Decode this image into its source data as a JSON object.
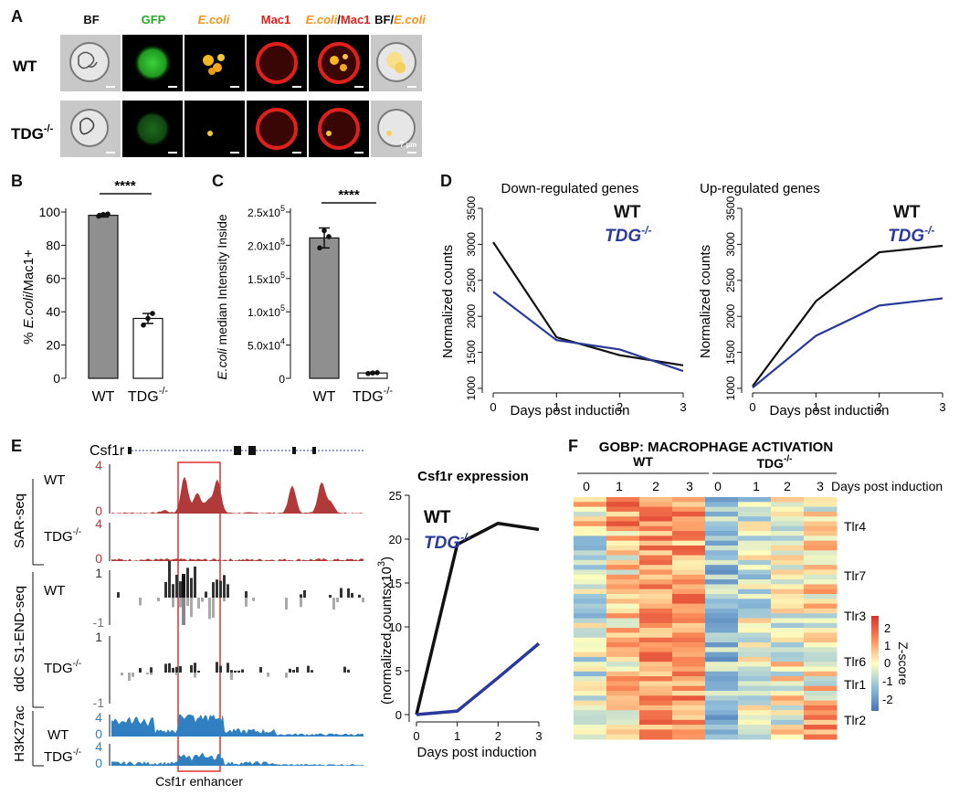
{
  "panel_labels": {
    "a": "A",
    "b": "B",
    "c": "C",
    "d": "D",
    "e": "E",
    "f": "F"
  },
  "panel_a": {
    "channels": [
      "BF",
      "GFP",
      "E.coli",
      "Mac1",
      "E.coli",
      "/",
      "Mac1",
      "BF/",
      "E.coli"
    ],
    "rows": [
      {
        "label": "WT"
      },
      {
        "label": "TDG",
        "sup": "-/-"
      }
    ],
    "scale_bar": "7 µm",
    "colors": {
      "gfp": "#2aa82a",
      "ecoli": "#f7941d",
      "mac1": "#e0201b"
    }
  },
  "chart_data": [
    {
      "id": "B",
      "type": "bar",
      "categories": [
        "WT",
        "TDG"
      ],
      "category_sup": [
        "",
        "-/-"
      ],
      "values": [
        98,
        36
      ],
      "errors": [
        1,
        3
      ],
      "points": [
        [
          97.5,
          98.5,
          98.8
        ],
        [
          32,
          36,
          39
        ]
      ],
      "ylabel_parts": [
        "% ",
        "E.coli",
        "/Mac1+"
      ],
      "yticks": [
        "0",
        "20",
        "40",
        "60",
        "80",
        "100"
      ],
      "ylim": [
        0,
        100
      ],
      "significance": "****"
    },
    {
      "id": "C",
      "type": "bar",
      "categories": [
        "WT",
        "TDG"
      ],
      "category_sup": [
        "",
        "-/-"
      ],
      "values": [
        211000,
        8000
      ],
      "errors": [
        15000,
        1000
      ],
      "points": [
        [
          196000,
          222000,
          213000
        ],
        [
          7200,
          8000,
          8500
        ]
      ],
      "ylabel_parts": [
        "E.coli",
        " median Intensity Inside"
      ],
      "ytick_values": [
        0,
        50000,
        100000,
        150000,
        200000,
        250000
      ],
      "ytick_labels": [
        [
          "0",
          ""
        ],
        [
          "5.0x10",
          "4"
        ],
        [
          "1.0x10",
          "5"
        ],
        [
          "1.5x10",
          "5"
        ],
        [
          "2.0x10",
          "5"
        ],
        [
          "2.5x10",
          "5"
        ]
      ],
      "ylim": [
        0,
        250000
      ],
      "significance": "****"
    },
    {
      "id": "D-down",
      "type": "line",
      "title": "Down-regulated genes",
      "x": [
        0,
        1,
        2,
        3
      ],
      "series": [
        {
          "name": "WT",
          "values": [
            3030,
            1710,
            1460,
            1320
          ]
        },
        {
          "name": "TDG",
          "sup": "-/-",
          "values": [
            2340,
            1670,
            1540,
            1240
          ]
        }
      ],
      "xlabel": "Days post induction",
      "ylabel": "Normalized counts",
      "yticks": [
        1000,
        1500,
        2000,
        2500,
        3000,
        3500
      ],
      "ylim": [
        1000,
        3500
      ]
    },
    {
      "id": "D-up",
      "type": "line",
      "title": "Up-regulated genes",
      "x": [
        0,
        1,
        2,
        3
      ],
      "series": [
        {
          "name": "WT",
          "values": [
            1030,
            2210,
            2890,
            2980
          ]
        },
        {
          "name": "TDG",
          "sup": "-/-",
          "values": [
            1010,
            1730,
            2150,
            2250
          ]
        }
      ],
      "xlabel": "Days post induction",
      "ylabel": "Normalized counts",
      "yticks": [
        1000,
        1500,
        2000,
        2500,
        3000,
        3500
      ],
      "ylim": [
        1000,
        3500
      ]
    },
    {
      "id": "E-csf1r",
      "type": "line",
      "title": "Csf1r expression",
      "x": [
        0,
        1,
        2,
        3
      ],
      "series": [
        {
          "name": "WT",
          "values": [
            0,
            19.4,
            21.8,
            21.1
          ]
        },
        {
          "name": "TDG",
          "sup": "-/-",
          "values": [
            0,
            0.4,
            4.2,
            8.1
          ]
        }
      ],
      "xlabel": "Days post induction",
      "ylabel_main": "(normalized countsx10",
      "ylabel_sup": "3",
      "ylabel_end": ")",
      "yticks": [
        0,
        5,
        10,
        15,
        20,
        25
      ],
      "ylim": [
        0,
        25
      ]
    }
  ],
  "panel_e": {
    "gene": "Csf1r",
    "enhancer_label": "Csf1r enhancer",
    "groups": [
      "SAR-seq",
      "ddC S1-END-seq",
      "H3K27ac"
    ],
    "rows": [
      "WT",
      "TDG",
      "WT",
      "TDG",
      "WT",
      "TDG"
    ],
    "sup": "-/-",
    "scales": {
      "sar": [
        "4",
        "0"
      ],
      "ddc": [
        "1",
        "-1"
      ],
      "h3": [
        "4",
        "0"
      ]
    },
    "colors": {
      "sar": "#b03a3a",
      "ddc": "#222222",
      "h3": "#2f7fc1"
    }
  },
  "panel_f": {
    "title": "GOBP: MACROPHAGE ACTIVATION",
    "group_wt": "WT",
    "group_tdg": "TDG",
    "group_sup": "-/-",
    "days": [
      "0",
      "1",
      "2",
      "3",
      "0",
      "1",
      "2",
      "3"
    ],
    "days_label": "Days post induction",
    "genes": [
      "Tlr4",
      "Tlr7",
      "Tlr3",
      "Tlr6",
      "Tlr1",
      "Tlr2"
    ],
    "colorbar_ticks": [
      "2",
      "1",
      "0",
      "-1",
      "-2"
    ],
    "colorbar_label": "Z-score"
  }
}
